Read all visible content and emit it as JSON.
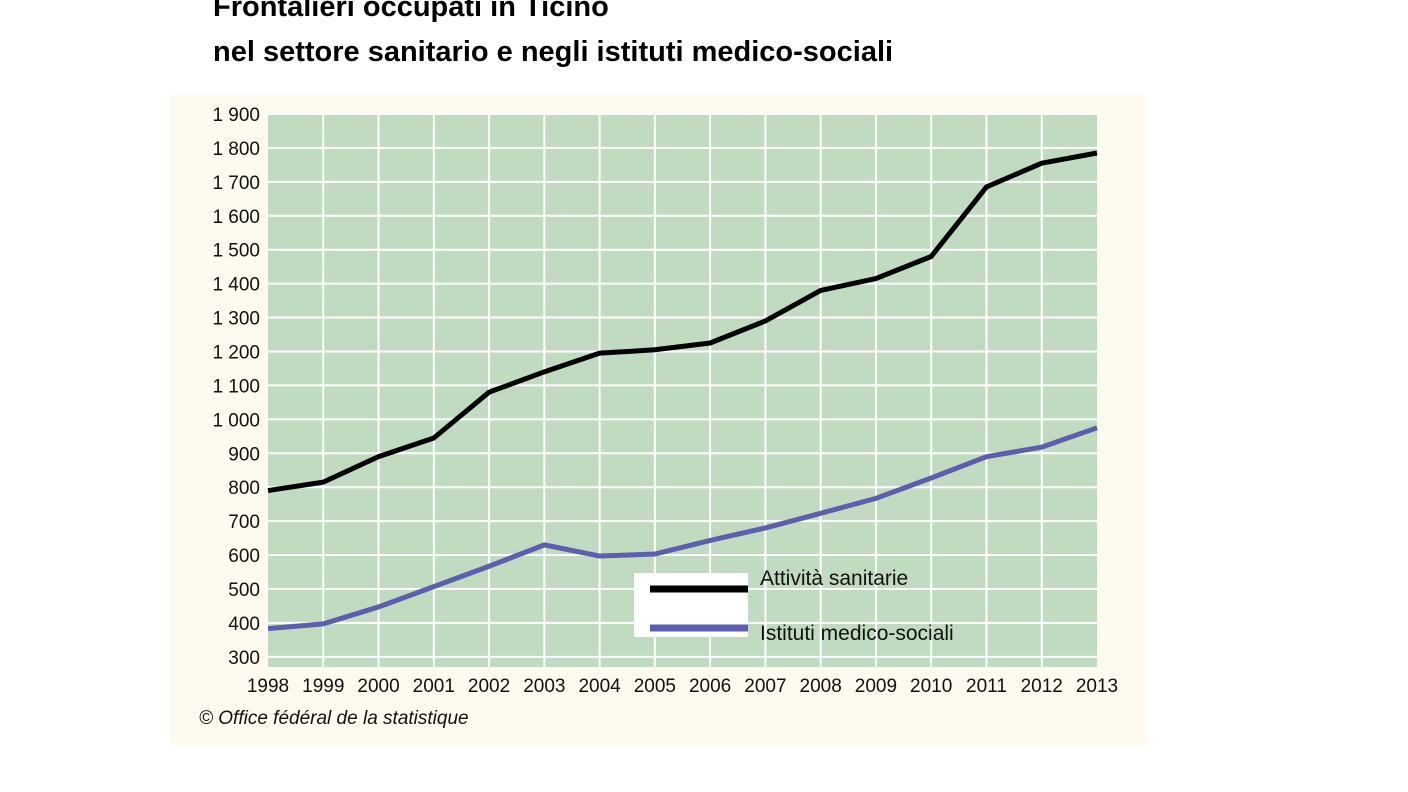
{
  "title_line1": "Frontalieri occupati in Ticino",
  "title_line2": "nel settore sanitario e negli istituti medico-sociali",
  "source": "© Office fédéral de la statistique",
  "chart_data": {
    "type": "line",
    "x": [
      1998,
      1999,
      2000,
      2001,
      2002,
      2003,
      2004,
      2005,
      2006,
      2007,
      2008,
      2009,
      2010,
      2011,
      2012,
      2013
    ],
    "x_tick_labels": [
      "1998",
      "1999",
      "2000",
      "2001",
      "2002",
      "2003",
      "2004",
      "2005",
      "2006",
      "2007",
      "2008",
      "2009",
      "2010",
      "2011",
      "2012",
      "2013"
    ],
    "y_ticks": [
      300,
      400,
      500,
      600,
      700,
      800,
      900,
      1000,
      1100,
      1200,
      1300,
      1400,
      1500,
      1600,
      1700,
      1800,
      1900
    ],
    "y_tick_labels": [
      "300",
      "400",
      "500",
      "600",
      "700",
      "800",
      "900",
      "1 000",
      "1 100",
      "1 200",
      "1 300",
      "1 400",
      "1 500",
      "1 600",
      "1 700",
      "1 800",
      "1 900"
    ],
    "ylim": [
      270,
      1900
    ],
    "grid": true,
    "plot_background": "#c0dbc0",
    "legend_placement": "bottom-center",
    "series": [
      {
        "name": "Attività sanitarie",
        "color": "#000000",
        "values": [
          790,
          815,
          890,
          945,
          1080,
          1140,
          1195,
          1205,
          1225,
          1290,
          1380,
          1415,
          1480,
          1685,
          1755,
          1785
        ]
      },
      {
        "name": "Istituti medico-sociali",
        "color": "#5b5fad",
        "values": [
          383,
          397,
          447,
          507,
          567,
          630,
          597,
          603,
          643,
          680,
          723,
          767,
          827,
          890,
          918,
          975
        ]
      }
    ]
  }
}
